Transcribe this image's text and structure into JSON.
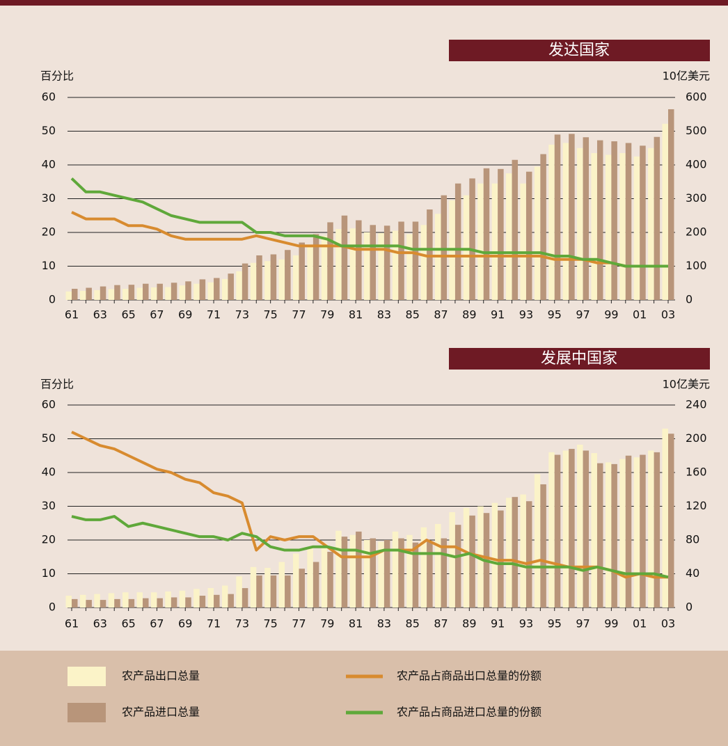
{
  "chart_data": [
    {
      "type": "combo",
      "title": "发达国家",
      "ylabel": "百分比",
      "y2label": "10亿美元",
      "categories": [
        "61",
        null,
        "63",
        null,
        "65",
        null,
        "67",
        null,
        "69",
        null,
        "71",
        null,
        "73",
        null,
        "75",
        null,
        "77",
        null,
        "79",
        null,
        "81",
        null,
        "83",
        null,
        "85",
        null,
        "87",
        null,
        "89",
        null,
        "91",
        null,
        "93",
        null,
        "95",
        null,
        "97",
        null,
        "99",
        null,
        "01",
        null,
        "03"
      ],
      "ylim": [
        0,
        60
      ],
      "yticks": [
        0,
        10,
        20,
        30,
        40,
        50,
        60
      ],
      "y2lim": [
        0,
        600
      ],
      "y2ticks": [
        0,
        100,
        200,
        300,
        400,
        500,
        600
      ],
      "grid": true,
      "series": [
        {
          "name": "农产品出口总量",
          "type": "bar",
          "axis": "y2",
          "color": "#fbf3c8",
          "values": [
            25,
            27,
            29,
            32,
            33,
            36,
            37,
            38,
            43,
            48,
            52,
            62,
            85,
            110,
            115,
            120,
            132,
            160,
            190,
            210,
            212,
            200,
            198,
            205,
            195,
            222,
            255,
            295,
            310,
            345,
            345,
            375,
            345,
            395,
            460,
            465,
            450,
            435,
            430,
            435,
            425,
            450,
            522
          ]
        },
        {
          "name": "农产品进口总量",
          "type": "bar",
          "axis": "y2",
          "color": "#b8957a",
          "values": [
            33,
            36,
            40,
            44,
            45,
            48,
            48,
            51,
            55,
            61,
            65,
            78,
            108,
            132,
            135,
            148,
            170,
            195,
            230,
            250,
            236,
            222,
            220,
            232,
            232,
            268,
            310,
            345,
            360,
            390,
            388,
            415,
            380,
            432,
            490,
            492,
            482,
            473,
            470,
            465,
            457,
            483,
            565
          ]
        },
        {
          "name": "农产品占商品出口总量的份额",
          "type": "line",
          "color": "#d88b2f",
          "values": [
            26,
            24,
            24,
            24,
            22,
            22,
            21,
            19,
            18,
            18,
            18,
            18,
            18,
            19,
            18,
            17,
            16,
            16,
            16,
            16,
            15,
            15,
            15,
            14,
            14,
            13,
            13,
            13,
            13,
            13,
            13,
            13,
            13,
            13,
            12,
            12,
            12,
            11,
            11,
            10,
            10,
            10,
            10
          ]
        },
        {
          "name": "农产品占商品进口总量的份额",
          "type": "line",
          "color": "#5fa83a",
          "values": [
            36,
            32,
            32,
            31,
            30,
            29,
            27,
            25,
            24,
            23,
            23,
            23,
            23,
            20,
            20,
            19,
            19,
            19,
            18,
            16,
            16,
            16,
            16,
            16,
            15,
            15,
            15,
            15,
            15,
            14,
            14,
            14,
            14,
            14,
            13,
            13,
            12,
            12,
            11,
            10,
            10,
            10,
            10
          ]
        }
      ]
    },
    {
      "type": "combo",
      "title": "发展中国家",
      "ylabel": "百分比",
      "y2label": "10亿美元",
      "categories": [
        "61",
        null,
        "63",
        null,
        "65",
        null,
        "67",
        null,
        "69",
        null,
        "71",
        null,
        "73",
        null,
        "75",
        null,
        "77",
        null,
        "79",
        null,
        "81",
        null,
        "83",
        null,
        "85",
        null,
        "87",
        null,
        "89",
        null,
        "91",
        null,
        "93",
        null,
        "95",
        null,
        "97",
        null,
        "99",
        null,
        "01",
        null,
        "03"
      ],
      "ylim": [
        0,
        60
      ],
      "yticks": [
        0,
        10,
        20,
        30,
        40,
        50,
        60
      ],
      "y2lim": [
        0,
        240
      ],
      "y2ticks": [
        0,
        40,
        80,
        120,
        160,
        200,
        240
      ],
      "grid": true,
      "series": [
        {
          "type": "bar",
          "axis": "y2",
          "color": "#fbf3c8",
          "values": [
            14,
            15,
            16,
            17,
            18,
            18,
            18,
            19,
            20,
            22,
            23,
            26,
            37,
            48,
            47,
            54,
            64,
            70,
            76,
            91,
            86,
            80,
            78,
            90,
            86,
            95,
            99,
            113,
            118,
            120,
            124,
            130,
            134,
            158,
            184,
            186,
            193,
            183,
            172,
            176,
            178,
            186,
            212
          ]
        },
        {
          "type": "bar",
          "axis": "y2",
          "color": "#b8957a",
          "values": [
            10,
            9,
            9,
            10,
            10,
            11,
            11,
            12,
            12,
            14,
            15,
            16,
            23,
            38,
            38,
            38,
            46,
            54,
            66,
            84,
            90,
            82,
            80,
            82,
            77,
            78,
            82,
            98,
            109,
            112,
            115,
            131,
            126,
            146,
            181,
            188,
            186,
            171,
            170,
            180,
            181,
            184,
            206
          ]
        },
        {
          "type": "line",
          "color": "#d88b2f",
          "values": [
            52,
            50,
            48,
            47,
            45,
            43,
            41,
            40,
            38,
            37,
            34,
            33,
            31,
            17,
            21,
            20,
            21,
            21,
            18,
            15,
            15,
            15,
            17,
            17,
            17,
            20,
            18,
            18,
            16,
            15,
            14,
            14,
            13,
            14,
            13,
            12,
            12,
            12,
            11,
            9,
            10,
            9,
            9
          ]
        },
        {
          "type": "line",
          "color": "#5fa83a",
          "values": [
            27,
            26,
            26,
            27,
            24,
            25,
            24,
            23,
            22,
            21,
            21,
            20,
            22,
            21,
            18,
            17,
            17,
            18,
            18,
            17,
            17,
            16,
            17,
            17,
            16,
            16,
            16,
            15,
            16,
            14,
            13,
            13,
            12,
            12,
            12,
            12,
            11,
            12,
            11,
            10,
            10,
            10,
            9
          ]
        }
      ]
    }
  ]
}
